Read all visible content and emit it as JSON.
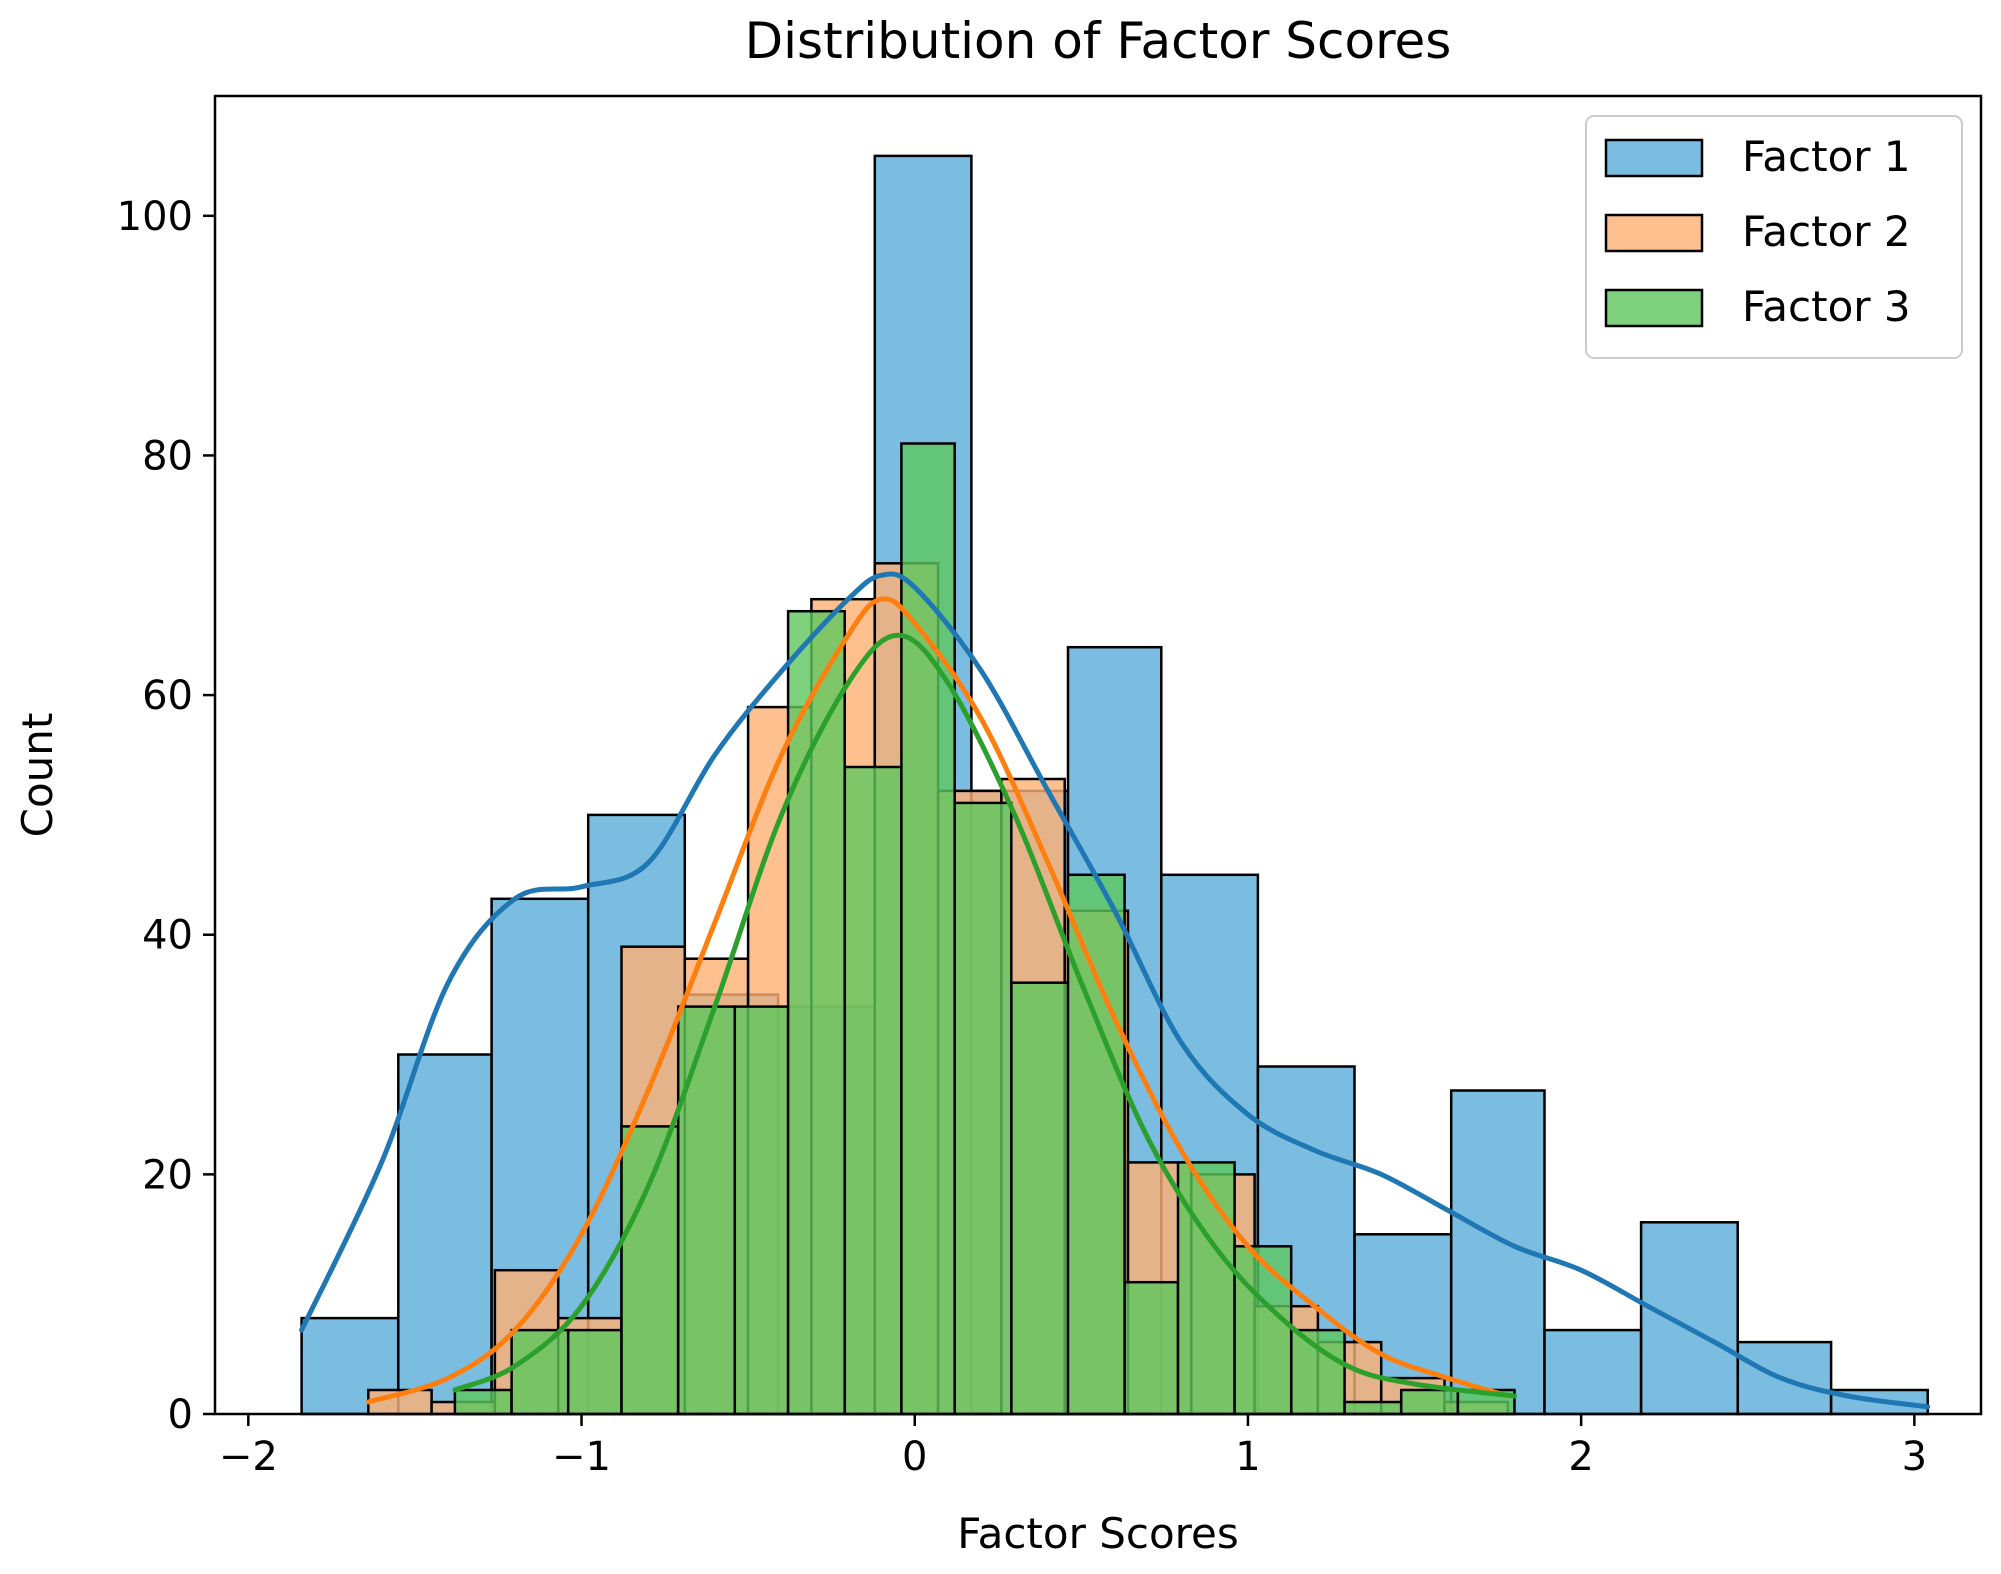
{
  "chart_data": {
    "type": "bar",
    "subtype": "histogram-with-kde",
    "title": "Distribution of Factor Scores",
    "xlabel": "Factor Scores",
    "ylabel": "Count",
    "xlim": [
      -2.1,
      3.2
    ],
    "ylim": [
      0,
      110
    ],
    "x_ticks": [
      -2,
      -1,
      0,
      1,
      2,
      3
    ],
    "x_tick_labels": [
      "−2",
      "−1",
      "0",
      "1",
      "2",
      "3"
    ],
    "y_ticks": [
      0,
      20,
      40,
      60,
      80,
      100
    ],
    "y_tick_labels": [
      "0",
      "20",
      "40",
      "60",
      "80",
      "100"
    ],
    "grid": false,
    "legend_position": "top-right",
    "series": [
      {
        "name": "Factor 1",
        "color": "#1f77b4",
        "fill": "#5aacd8",
        "bin_edges": [
          -1.84,
          -1.55,
          -1.27,
          -0.98,
          -0.69,
          -0.41,
          -0.12,
          0.17,
          0.46,
          0.74,
          1.03,
          1.32,
          1.61,
          1.89,
          2.18,
          2.47,
          2.75,
          3.04
        ],
        "counts": [
          8,
          30,
          43,
          50,
          35,
          34,
          105,
          52,
          64,
          45,
          29,
          15,
          27,
          7,
          16,
          6,
          2,
          1
        ],
        "kde": [
          [
            -1.84,
            7
          ],
          [
            -1.6,
            21
          ],
          [
            -1.4,
            36
          ],
          [
            -1.2,
            43
          ],
          [
            -1.0,
            44
          ],
          [
            -0.8,
            46
          ],
          [
            -0.6,
            55
          ],
          [
            -0.4,
            62
          ],
          [
            -0.2,
            68
          ],
          [
            -0.1,
            70
          ],
          [
            0.0,
            69
          ],
          [
            0.2,
            62
          ],
          [
            0.4,
            52
          ],
          [
            0.6,
            42
          ],
          [
            0.8,
            31
          ],
          [
            1.0,
            25
          ],
          [
            1.2,
            22
          ],
          [
            1.4,
            20
          ],
          [
            1.6,
            17
          ],
          [
            1.8,
            14
          ],
          [
            2.0,
            12
          ],
          [
            2.2,
            9
          ],
          [
            2.4,
            6
          ],
          [
            2.6,
            3
          ],
          [
            2.8,
            1.5
          ],
          [
            3.04,
            0.6
          ]
        ]
      },
      {
        "name": "Factor 2",
        "color": "#ff7f0e",
        "fill": "#ffb074",
        "bin_edges": [
          -1.64,
          -1.45,
          -1.26,
          -1.07,
          -0.88,
          -0.69,
          -0.5,
          -0.31,
          -0.12,
          0.07,
          0.26,
          0.45,
          0.64,
          0.83,
          1.02,
          1.21,
          1.4,
          1.59,
          1.78
        ],
        "counts": [
          2,
          1,
          12,
          8,
          39,
          38,
          59,
          68,
          71,
          52,
          53,
          42,
          21,
          20,
          9,
          6,
          3,
          1
        ],
        "kde": [
          [
            -1.64,
            1
          ],
          [
            -1.4,
            3
          ],
          [
            -1.2,
            7
          ],
          [
            -1.0,
            15
          ],
          [
            -0.8,
            27
          ],
          [
            -0.6,
            41
          ],
          [
            -0.4,
            55
          ],
          [
            -0.2,
            65
          ],
          [
            -0.1,
            68
          ],
          [
            0.0,
            66
          ],
          [
            0.2,
            58
          ],
          [
            0.4,
            46
          ],
          [
            0.6,
            33
          ],
          [
            0.8,
            22
          ],
          [
            1.0,
            14
          ],
          [
            1.2,
            9
          ],
          [
            1.4,
            5
          ],
          [
            1.6,
            3
          ],
          [
            1.78,
            1.5
          ]
        ]
      },
      {
        "name": "Factor 3",
        "color": "#2ca02c",
        "fill": "#5ec75e",
        "bin_edges": [
          -1.38,
          -1.21,
          -1.04,
          -0.88,
          -0.71,
          -0.54,
          -0.38,
          -0.21,
          -0.04,
          0.12,
          0.29,
          0.46,
          0.63,
          0.79,
          0.96,
          1.13,
          1.29,
          1.46,
          1.63,
          1.8
        ],
        "counts": [
          2,
          7,
          7,
          24,
          34,
          34,
          67,
          54,
          81,
          51,
          36,
          45,
          11,
          21,
          14,
          7,
          1,
          2,
          2
        ],
        "kde": [
          [
            -1.38,
            2
          ],
          [
            -1.2,
            4
          ],
          [
            -1.0,
            9
          ],
          [
            -0.8,
            19
          ],
          [
            -0.6,
            34
          ],
          [
            -0.4,
            50
          ],
          [
            -0.2,
            61
          ],
          [
            -0.05,
            65
          ],
          [
            0.1,
            61
          ],
          [
            0.3,
            50
          ],
          [
            0.5,
            36
          ],
          [
            0.7,
            23
          ],
          [
            0.9,
            14
          ],
          [
            1.1,
            8
          ],
          [
            1.3,
            4
          ],
          [
            1.5,
            2.5
          ],
          [
            1.8,
            1.5
          ]
        ]
      }
    ]
  }
}
